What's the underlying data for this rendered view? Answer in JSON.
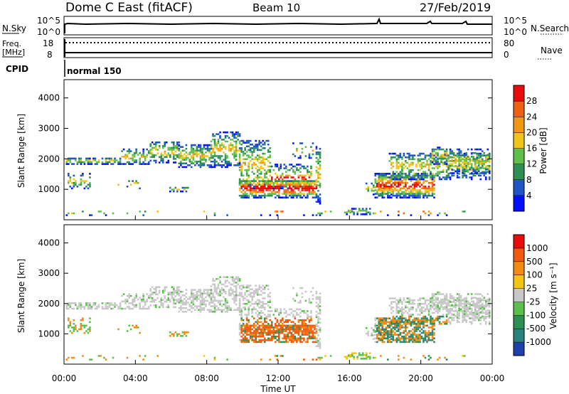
{
  "header": {
    "station": "Dome C East (fitACF)",
    "beam": "Beam 10",
    "date": "27/Feb/2019"
  },
  "summary": {
    "nsky_label": "N.Sky",
    "nsky_hi": "10^5",
    "nsky_lo": "10^0",
    "nsearch_label": "N.Search",
    "nsearch_hi": "10^5",
    "nsearch_lo": "10^0",
    "freq_label_1": "Freq.",
    "freq_label_2": "[MHz]",
    "freq_hi": "18",
    "freq_lo": "8",
    "nave_label": "Nave",
    "nave_hi": "80",
    "nave_lo": "0",
    "cpid_label": "CPID",
    "cpid_value": "normal 150"
  },
  "chart_data": [
    {
      "type": "heatmap",
      "name": "power",
      "ylabel": "Slant Range [km]",
      "yticks": [
        "1000",
        "2000",
        "3000",
        "4000"
      ],
      "ylim": [
        0,
        4600
      ],
      "xlim": [
        "00:00",
        "24:00"
      ],
      "colorbar_label": "Power [dB]",
      "colorbar_ticks": [
        "4",
        "8",
        "12",
        "16",
        "20",
        "24",
        "28"
      ],
      "colors": [
        "#0010ff",
        "#1f53c6",
        "#2e8f55",
        "#5fbf4a",
        "#f2c418",
        "#f39712",
        "#f16010",
        "#e80c0c"
      ]
    },
    {
      "type": "heatmap",
      "name": "velocity",
      "ylabel": "Slant Range [km]",
      "yticks": [
        "1000",
        "2000",
        "3000",
        "4000"
      ],
      "ylim": [
        0,
        4600
      ],
      "xlim": [
        "00:00",
        "24:00"
      ],
      "xlabel": "Time UT",
      "xticks": [
        "00:00",
        "04:00",
        "08:00",
        "12:00",
        "16:00",
        "20:00",
        "00:00"
      ],
      "colorbar_label": "Velocity [m s⁻¹]",
      "colorbar_ticks": [
        "1000",
        "500",
        "100",
        "25",
        "-25",
        "-100",
        "-500",
        "-1000"
      ],
      "colors": [
        "#1e3fae",
        "#2a7f7f",
        "#2e8f55",
        "#59c04a",
        "#c8c8c8",
        "#f3c412",
        "#f38a12",
        "#f05a0d",
        "#e80c0c"
      ]
    }
  ]
}
